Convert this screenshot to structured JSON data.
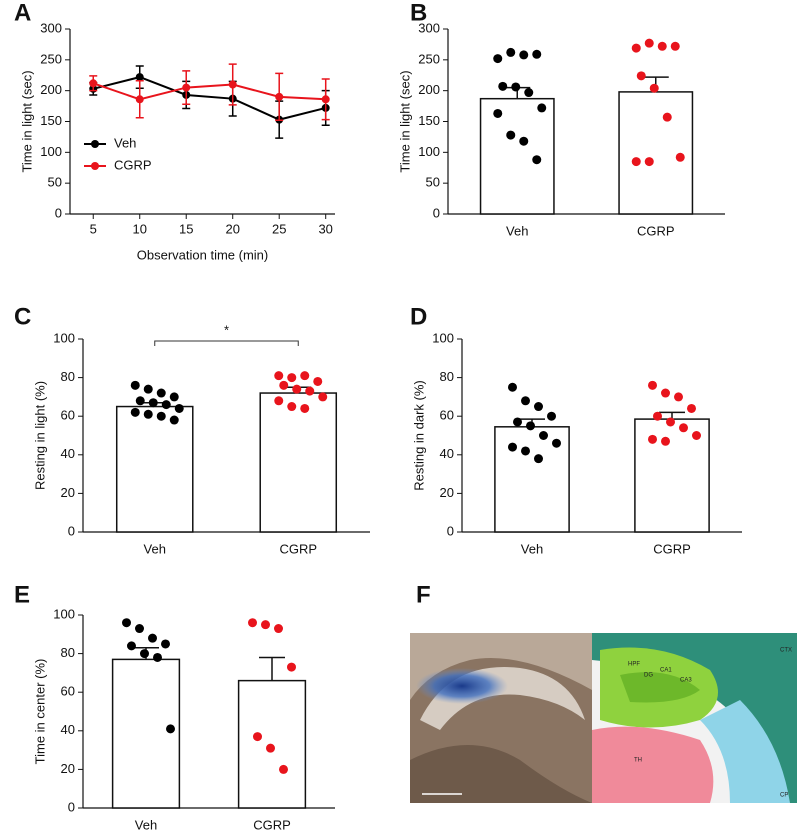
{
  "chart_data": [
    {
      "type": "line",
      "panel": "A",
      "xlabel": "Observation time (min)",
      "ylabel": "Time in light (sec)",
      "x": [
        5,
        10,
        15,
        20,
        25,
        30
      ],
      "xlim": [
        2.5,
        31
      ],
      "xticks": [
        5,
        10,
        15,
        20,
        25,
        30
      ],
      "ylim": [
        0,
        300
      ],
      "yticks": [
        0,
        50,
        100,
        150,
        200,
        250,
        300
      ],
      "legend": "lower left",
      "series": [
        {
          "name": "Veh",
          "color": "#000000",
          "values": [
            203,
            222,
            193,
            187,
            153,
            172
          ],
          "errors": [
            10,
            18,
            22,
            28,
            30,
            28
          ]
        },
        {
          "name": "CGRP",
          "color": "#e8141c",
          "values": [
            212,
            186,
            205,
            210,
            190,
            186
          ],
          "errors": [
            12,
            30,
            27,
            33,
            38,
            33
          ]
        }
      ]
    },
    {
      "type": "bar",
      "panel": "B",
      "ylabel": "Time in light (sec)",
      "categories": [
        "Veh",
        "CGRP"
      ],
      "values": [
        187,
        198
      ],
      "errors": [
        18,
        24
      ],
      "point_colors": [
        "#000000",
        "#e8141c"
      ],
      "points": [
        [
          252,
          262,
          258,
          259,
          207,
          206,
          197,
          172,
          163,
          128,
          118,
          88
        ],
        [
          269,
          277,
          272,
          272,
          224,
          204,
          157,
          92,
          85,
          85
        ]
      ],
      "ylim": [
        0,
        300
      ],
      "yticks": [
        0,
        50,
        100,
        150,
        200,
        250,
        300
      ]
    },
    {
      "type": "bar",
      "panel": "C",
      "ylabel": "Resting in light (%)",
      "categories": [
        "Veh",
        "CGRP"
      ],
      "values": [
        65,
        72
      ],
      "errors": [
        2,
        3
      ],
      "point_colors": [
        "#000000",
        "#e8141c"
      ],
      "significance": "*",
      "points": [
        [
          76,
          74,
          72,
          70,
          68,
          67,
          66,
          64,
          62,
          61,
          60,
          58
        ],
        [
          81,
          80,
          81,
          78,
          76,
          74,
          73,
          70,
          68,
          65,
          64
        ]
      ],
      "ylim": [
        0,
        100
      ],
      "yticks": [
        0,
        20,
        40,
        60,
        80,
        100
      ]
    },
    {
      "type": "bar",
      "panel": "D",
      "ylabel": "Resting in dark (%)",
      "categories": [
        "Veh",
        "CGRP"
      ],
      "values": [
        54.5,
        58.5
      ],
      "errors": [
        4,
        3.5
      ],
      "point_colors": [
        "#000000",
        "#e8141c"
      ],
      "points": [
        [
          75,
          68,
          65,
          60,
          57,
          55,
          50,
          46,
          44,
          42,
          38
        ],
        [
          76,
          72,
          70,
          64,
          60,
          57,
          54,
          50,
          48,
          47
        ]
      ],
      "ylim": [
        0,
        100
      ],
      "yticks": [
        0,
        20,
        40,
        60,
        80,
        100
      ]
    },
    {
      "type": "bar",
      "panel": "E",
      "ylabel": "Time in center (%)",
      "categories": [
        "Veh",
        "CGRP"
      ],
      "values": [
        77,
        66
      ],
      "errors": [
        6,
        12
      ],
      "point_colors": [
        "#000000",
        "#e8141c"
      ],
      "points": [
        [
          96,
          93,
          88,
          85,
          84,
          80,
          78,
          41
        ],
        [
          96,
          95,
          93,
          73,
          37,
          31,
          20
        ]
      ],
      "ylim": [
        0,
        100
      ],
      "yticks": [
        0,
        20,
        40,
        60,
        80,
        100
      ]
    }
  ],
  "figure_f": {
    "panel": "F",
    "labels": [
      "CTX",
      "HPF",
      "DG",
      "CA1",
      "CA3",
      "TH",
      "CP"
    ]
  }
}
